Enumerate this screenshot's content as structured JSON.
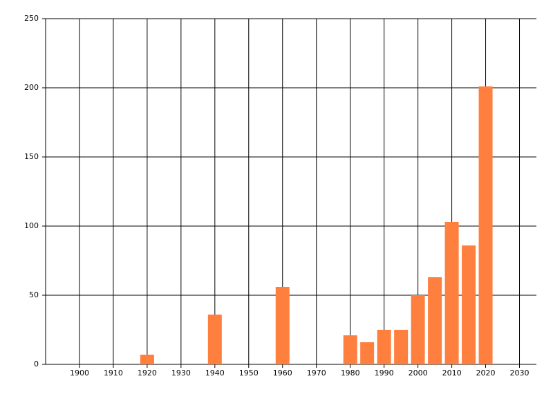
{
  "chart_data": {
    "type": "bar",
    "x": [
      1920,
      1940,
      1960,
      1980,
      1985,
      1990,
      1995,
      2000,
      2005,
      2010,
      2015,
      2020
    ],
    "values": [
      7,
      36,
      56,
      21,
      16,
      25,
      25,
      50,
      63,
      103,
      86,
      201
    ],
    "color": "#ff7f3f",
    "xlim": [
      1890,
      2035
    ],
    "xticks": [
      1900,
      1910,
      1920,
      1930,
      1940,
      1950,
      1960,
      1970,
      1980,
      1990,
      2000,
      2010,
      2020,
      2030
    ],
    "ylim": [
      0,
      250
    ],
    "yticks": [
      0,
      50,
      100,
      150,
      200,
      250
    ],
    "grid": true
  }
}
